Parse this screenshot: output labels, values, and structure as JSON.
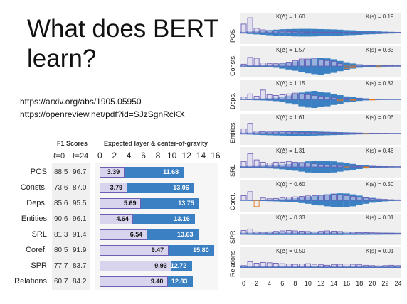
{
  "slide": {
    "title": "What does BERT learn?",
    "links": [
      "https://arxiv.org/abs/1905.05950",
      "https://openreview.net/pdf?id=SJzSgnRcKX"
    ]
  },
  "table": {
    "f1_header": "F1 Scores",
    "chart_header": "Expected layer & center-of-gravity",
    "col_l0": "ℓ=0",
    "col_l24": "ℓ=24",
    "ticks": [
      "0",
      "2",
      "4",
      "6",
      "8",
      "10",
      "12",
      "14",
      "16"
    ]
  },
  "chart_data": [
    {
      "type": "bar",
      "title": "Expected layer & center-of-gravity",
      "xlim": [
        0,
        16
      ],
      "categories": [
        "POS",
        "Consts.",
        "Deps.",
        "Entities",
        "SRL",
        "Coref.",
        "SPR",
        "Relations"
      ],
      "f1_l0": [
        "88.5",
        "73.6",
        "85.6",
        "90.6",
        "81.3",
        "80.5",
        "77.7",
        "60.7"
      ],
      "f1_l24": [
        "96.7",
        "87.0",
        "95.5",
        "96.1",
        "91.4",
        "91.9",
        "83.7",
        "84.2"
      ],
      "center_of_gravity": [
        3.39,
        3.79,
        5.69,
        4.64,
        6.54,
        9.47,
        9.93,
        9.4
      ],
      "expected_layer": [
        11.68,
        13.06,
        13.75,
        13.16,
        13.63,
        15.8,
        12.72,
        12.83
      ]
    },
    {
      "type": "bar",
      "x_ticks": [
        "0",
        "2",
        "4",
        "6",
        "8",
        "10",
        "12",
        "14",
        "16",
        "18",
        "20",
        "22",
        "24"
      ],
      "panels": [
        {
          "label": "POS",
          "k_delta": "K(Δ) = 1.60",
          "k_s": "K(s) = 0.19",
          "delta": [
            0.55,
            0.95,
            0.28,
            0.18,
            0.12,
            0.1,
            0.08,
            0.07,
            0.06,
            0.05,
            0.04,
            0.04,
            0.03,
            0.03,
            0.03,
            0.02,
            0.02,
            0.02,
            0.02,
            0.01,
            0.01,
            0.01,
            0.01,
            0.01,
            0.01
          ],
          "s": [
            0.1,
            0.15,
            0.2,
            0.25,
            0.3,
            0.35,
            0.4,
            0.42,
            0.44,
            0.45,
            0.45,
            0.44,
            0.42,
            0.4,
            0.38,
            0.35,
            0.3,
            0.28,
            0.25,
            0.2,
            0.18,
            0.15,
            0.12,
            0.1,
            0.08
          ]
        },
        {
          "label": "Consts.",
          "k_delta": "K(Δ) = 1.57",
          "k_s": "K(s) = 0.83",
          "delta": [
            0.12,
            0.55,
            0.5,
            0.2,
            0.15,
            0.15,
            0.18,
            0.25,
            0.35,
            0.45,
            0.45,
            0.5,
            0.4,
            0.35,
            0.3,
            0.15,
            -0.15,
            -0.1,
            0.08,
            0.05,
            0.03,
            -0.08,
            0.04,
            0.03,
            0.02
          ],
          "s": [
            0.05,
            0.08,
            0.1,
            0.12,
            0.15,
            0.2,
            0.3,
            0.4,
            0.55,
            0.7,
            0.85,
            0.95,
            1.0,
            0.9,
            0.8,
            0.6,
            0.45,
            0.3,
            0.2,
            0.15,
            0.1,
            0.08,
            0.06,
            0.05,
            0.04
          ]
        },
        {
          "label": "Deps.",
          "k_delta": "K(Δ) = 1.15",
          "k_s": "K(s) = 0.87",
          "delta": [
            0.15,
            0.35,
            0.2,
            0.6,
            0.3,
            0.25,
            0.3,
            0.35,
            0.4,
            0.35,
            0.3,
            0.25,
            0.2,
            0.15,
            0.1,
            -0.08,
            0.06,
            -0.05,
            0.04,
            0.03,
            -0.04,
            0.02,
            0.02,
            0.01,
            0.01
          ],
          "s": [
            0.05,
            0.07,
            0.1,
            0.12,
            0.15,
            0.2,
            0.3,
            0.45,
            0.6,
            0.8,
            0.95,
            1.0,
            0.9,
            0.8,
            0.65,
            0.5,
            0.35,
            0.25,
            0.18,
            0.12,
            0.08,
            0.06,
            0.05,
            0.04,
            0.03
          ]
        },
        {
          "label": "Entities",
          "k_delta": "K(Δ) = 1.61",
          "k_s": "K(s) = 0.06",
          "delta": [
            0.3,
            0.65,
            0.15,
            0.12,
            0.1,
            0.1,
            0.12,
            0.1,
            0.08,
            0.07,
            0.06,
            0.06,
            0.05,
            0.05,
            0.04,
            0.04,
            0.03,
            0.03,
            0.03,
            -0.03,
            0.02,
            0.02,
            0.02,
            0.01,
            0.01
          ],
          "s": [
            0.1,
            0.12,
            0.15,
            0.18,
            0.2,
            0.22,
            0.24,
            0.25,
            0.26,
            0.26,
            0.25,
            0.24,
            0.22,
            0.2,
            0.18,
            0.16,
            0.14,
            0.12,
            0.1,
            0.08,
            0.07,
            0.06,
            0.05,
            0.04,
            0.03
          ]
        },
        {
          "label": "SRL",
          "k_delta": "K(Δ) = 1.31",
          "k_s": "K(s) = 0.46",
          "delta": [
            0.35,
            0.85,
            0.45,
            0.3,
            0.25,
            0.3,
            0.3,
            0.35,
            0.3,
            0.28,
            0.25,
            0.2,
            0.15,
            0.12,
            0.1,
            0.08,
            -0.06,
            0.05,
            0.04,
            -0.04,
            0.03,
            0.02,
            0.02,
            0.01,
            0.01
          ],
          "s": [
            0.08,
            0.1,
            0.12,
            0.15,
            0.18,
            0.22,
            0.28,
            0.35,
            0.45,
            0.55,
            0.65,
            0.72,
            0.75,
            0.72,
            0.65,
            0.55,
            0.45,
            0.35,
            0.25,
            0.18,
            0.12,
            0.09,
            0.07,
            0.05,
            0.04
          ]
        },
        {
          "label": "Coref.",
          "k_delta": "K(Δ) = 0.60",
          "k_s": "K(s) = 0.50",
          "delta": [
            0.3,
            0.55,
            -0.4,
            0.15,
            0.1,
            0.12,
            0.15,
            0.2,
            0.22,
            0.25,
            0.28,
            0.3,
            0.32,
            0.35,
            0.38,
            0.35,
            0.3,
            0.25,
            0.2,
            0.15,
            0.1,
            0.08,
            0.06,
            0.04,
            0.03
          ],
          "s": [
            0.04,
            0.05,
            0.06,
            0.08,
            0.1,
            0.12,
            0.15,
            0.2,
            0.25,
            0.32,
            0.4,
            0.5,
            0.6,
            0.7,
            0.78,
            0.82,
            0.8,
            0.7,
            0.55,
            0.4,
            0.28,
            0.18,
            0.12,
            0.08,
            0.05
          ]
        },
        {
          "label": "SPR",
          "k_delta": "K(Δ) = 0.33",
          "k_s": "K(s) = 0.01",
          "delta": [
            0.2,
            0.3,
            0.12,
            0.1,
            0.12,
            0.15,
            0.18,
            0.2,
            0.18,
            0.16,
            0.14,
            0.12,
            0.15,
            0.18,
            0.16,
            0.14,
            0.12,
            0.1,
            0.08,
            0.07,
            0.06,
            0.05,
            0.04,
            0.03,
            0.02
          ],
          "s": [
            0.12,
            0.13,
            0.14,
            0.14,
            0.15,
            0.15,
            0.15,
            0.15,
            0.15,
            0.15,
            0.15,
            0.15,
            0.15,
            0.15,
            0.15,
            0.15,
            0.14,
            0.14,
            0.13,
            0.13,
            0.12,
            0.12,
            0.11,
            0.11,
            0.1
          ]
        },
        {
          "label": "Relations",
          "k_delta": "K(Δ) = 0.50",
          "k_s": "K(s) = 0.01",
          "delta": [
            0.1,
            0.35,
            0.25,
            0.3,
            0.28,
            0.25,
            0.22,
            0.2,
            0.18,
            0.2,
            0.22,
            0.18,
            0.15,
            0.12,
            0.15,
            0.18,
            0.2,
            0.18,
            0.15,
            0.12,
            0.1,
            0.08,
            0.1,
            0.12,
            0.1
          ],
          "s": [
            0.12,
            0.13,
            0.14,
            0.14,
            0.15,
            0.15,
            0.15,
            0.15,
            0.15,
            0.15,
            0.15,
            0.15,
            0.15,
            0.15,
            0.15,
            0.15,
            0.14,
            0.14,
            0.13,
            0.13,
            0.12,
            0.12,
            0.11,
            0.11,
            0.1
          ]
        }
      ]
    }
  ],
  "colors": {
    "blue": "#3a80c3",
    "lavender": "#d9d4ee",
    "purple_edge": "#6b5fb5",
    "orange": "#e8741f"
  }
}
